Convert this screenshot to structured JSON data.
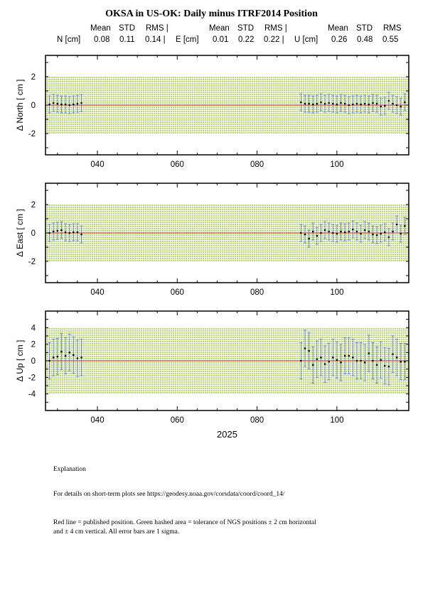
{
  "title": "OKSA in US-OK: Daily minus ITRF2014 Position",
  "stats": {
    "headers": [
      "Mean",
      "STD",
      "RMS |"
    ],
    "components": [
      {
        "label": "N [cm]",
        "mean": "0.08",
        "std": "0.11",
        "rms": "0.14 |"
      },
      {
        "label": "E [cm]",
        "mean": "0.01",
        "std": "0.22",
        "rms": "0.22 |"
      },
      {
        "label": "U [cm]",
        "mean": "0.26",
        "std": "0.48",
        "rms": "0.55"
      }
    ],
    "last_rms_header": "RMS"
  },
  "colors": {
    "tolerance_fill": "#b5d96a",
    "published_line": "#e02a1c",
    "error_bar": "#5b6fe0",
    "point": "#000000"
  },
  "chart_data": [
    {
      "type": "scatter",
      "ylabel": "Δ North  [ cm ]",
      "xlim": [
        27,
        118
      ],
      "ylim": [
        -3.5,
        3.5
      ],
      "yticks": [
        "-2",
        "0",
        "2"
      ],
      "xticks": [
        "040",
        "060",
        "080",
        "100"
      ],
      "tolerance": [
        -2,
        2
      ],
      "published": 0,
      "error": 0.6,
      "x": [
        28,
        29,
        30,
        31,
        32,
        33,
        34,
        35,
        36,
        91,
        92,
        93,
        94,
        95,
        96,
        97,
        98,
        99,
        100,
        101,
        102,
        103,
        104,
        105,
        106,
        107,
        108,
        109,
        110,
        111,
        112,
        113,
        114,
        115,
        116,
        117
      ],
      "y": [
        0.05,
        0.15,
        0.1,
        0.05,
        0.05,
        0.0,
        0.05,
        0.1,
        0.15,
        0.2,
        0.1,
        0.1,
        0.05,
        0.1,
        0.2,
        0.1,
        0.15,
        0.1,
        0.05,
        0.15,
        0.1,
        0.0,
        0.05,
        0.1,
        0.05,
        0.1,
        0.05,
        0.15,
        0.1,
        -0.1,
        -0.05,
        0.3,
        0.1,
        0.0,
        -0.1,
        0.2
      ]
    },
    {
      "type": "scatter",
      "ylabel": "Δ East  [ cm ]",
      "xlim": [
        27,
        118
      ],
      "ylim": [
        -3.5,
        3.5
      ],
      "yticks": [
        "-2",
        "0",
        "2"
      ],
      "xticks": [
        "040",
        "060",
        "080",
        "100"
      ],
      "tolerance": [
        -2,
        2
      ],
      "published": 0,
      "error": 0.6,
      "x": [
        28,
        29,
        30,
        31,
        32,
        33,
        34,
        35,
        36,
        91,
        92,
        93,
        94,
        95,
        96,
        97,
        98,
        99,
        100,
        101,
        102,
        103,
        104,
        105,
        106,
        107,
        108,
        109,
        110,
        111,
        112,
        113,
        114,
        115,
        116,
        117
      ],
      "y": [
        0.0,
        0.1,
        0.15,
        0.2,
        0.05,
        0.0,
        0.05,
        0.05,
        -0.1,
        0.0,
        -0.1,
        -0.4,
        0.1,
        -0.2,
        0.0,
        0.2,
        0.1,
        0.0,
        -0.05,
        0.1,
        0.05,
        0.1,
        0.25,
        0.1,
        -0.05,
        0.2,
        0.1,
        -0.1,
        -0.15,
        -0.05,
        0.05,
        -0.3,
        0.1,
        0.6,
        -0.05,
        0.5
      ]
    },
    {
      "type": "scatter",
      "ylabel": "Δ Up  [ cm ]",
      "xlim": [
        27,
        118
      ],
      "ylim": [
        -6,
        6
      ],
      "yticks": [
        "-4",
        "-2",
        "0",
        "2",
        "4"
      ],
      "xticks": [
        "040",
        "060",
        "080",
        "100"
      ],
      "xlabel": "2025",
      "tolerance": [
        -4,
        4
      ],
      "published": 0,
      "error": 2.2,
      "x": [
        28,
        29,
        30,
        31,
        32,
        33,
        34,
        35,
        36,
        91,
        92,
        93,
        94,
        95,
        96,
        97,
        98,
        99,
        100,
        101,
        102,
        103,
        104,
        105,
        106,
        107,
        108,
        109,
        110,
        111,
        112,
        113,
        114,
        115,
        116,
        117
      ],
      "y": [
        0.0,
        0.4,
        0.5,
        1.1,
        0.6,
        1.0,
        0.7,
        0.3,
        0.4,
        0.0,
        1.5,
        1.2,
        -0.5,
        0.2,
        0.4,
        -0.4,
        -0.1,
        0.4,
        0.1,
        -0.2,
        0.6,
        0.6,
        0.4,
        0.0,
        0.0,
        -0.2,
        0.9,
        0.0,
        -0.5,
        0.1,
        -0.6,
        -0.7,
        0.8,
        0.4,
        -0.1,
        -0.1
      ]
    }
  ],
  "explanation": {
    "heading": "Explanation",
    "details": "For details on short-term plots see https://geodesy.noaa.gov/corsdata/coord/coord_14/",
    "legend_line1": "Red line = published position.  Green hashed area = tolerance of NGS positions ± 2 cm horizontal",
    "legend_line2": "and ± 4 cm vertical.  All error bars are 1 sigma."
  }
}
